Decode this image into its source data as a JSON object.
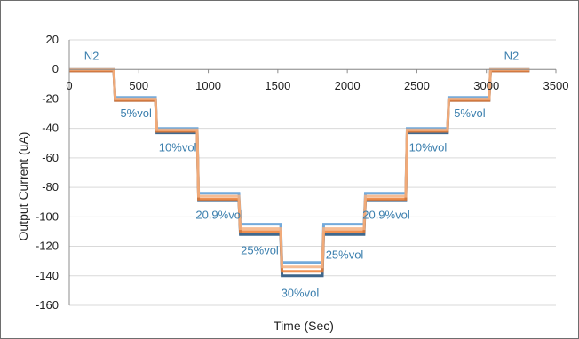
{
  "chart_data": {
    "type": "line",
    "title": "",
    "xlabel": "Time (Sec)",
    "ylabel": "Output Current (uA)",
    "xlim": [
      0,
      3500
    ],
    "ylim": [
      -160,
      20
    ],
    "x_ticks": [
      0,
      500,
      1000,
      1500,
      2000,
      2500,
      3000,
      3500
    ],
    "y_ticks": [
      20,
      0,
      -20,
      -40,
      -60,
      -80,
      -100,
      -120,
      -140,
      -160
    ],
    "grid": "horizontal",
    "legend": "none",
    "colors": [
      "#1f4e79",
      "#5b9bd5",
      "#ed7d31",
      "#f4b183"
    ],
    "series": [
      {
        "x": [
          0,
          320,
          330,
          620,
          630,
          920,
          930,
          1220,
          1230,
          1520,
          1530,
          1820,
          1830,
          2120,
          2130,
          2420,
          2430,
          2720,
          2730,
          3020,
          3030,
          3310
        ],
        "y": [
          -1,
          -1,
          -21,
          -21,
          -43,
          -43,
          -89,
          -89,
          -112,
          -112,
          -140,
          -140,
          -112,
          -112,
          -89,
          -89,
          -43,
          -43,
          -21,
          -21,
          -1,
          -1
        ]
      },
      {
        "x": [
          0,
          320,
          330,
          620,
          630,
          920,
          930,
          1220,
          1230,
          1520,
          1530,
          1820,
          1830,
          2120,
          2130,
          2420,
          2430,
          2720,
          2730,
          3020,
          3030,
          3310
        ],
        "y": [
          0,
          0,
          -19,
          -19,
          -40,
          -40,
          -84,
          -84,
          -105,
          -105,
          -131,
          -131,
          -105,
          -105,
          -84,
          -84,
          -40,
          -40,
          -19,
          -19,
          0,
          0
        ]
      },
      {
        "x": [
          0,
          320,
          330,
          620,
          630,
          920,
          930,
          1220,
          1230,
          1520,
          1530,
          1820,
          1830,
          2120,
          2130,
          2420,
          2430,
          2720,
          2730,
          3020,
          3030,
          3310
        ],
        "y": [
          -1,
          -1,
          -21,
          -21,
          -42,
          -42,
          -88,
          -88,
          -110,
          -110,
          -137,
          -137,
          -110,
          -110,
          -88,
          -88,
          -42,
          -42,
          -21,
          -21,
          -1,
          -1
        ]
      },
      {
        "x": [
          0,
          320,
          330,
          620,
          630,
          920,
          930,
          1220,
          1230,
          1520,
          1530,
          1820,
          1830,
          2120,
          2130,
          2420,
          2430,
          2720,
          2730,
          3020,
          3030,
          3310
        ],
        "y": [
          0,
          0,
          -20,
          -20,
          -41,
          -41,
          -86,
          -86,
          -108,
          -108,
          -134,
          -134,
          -108,
          -108,
          -86,
          -86,
          -41,
          -41,
          -20,
          -20,
          0,
          0
        ]
      }
    ],
    "annotations": [
      {
        "text": "N2",
        "x": 160,
        "y": 9
      },
      {
        "text": "5%vol",
        "x": 480,
        "y": -30
      },
      {
        "text": "10%vol",
        "x": 780,
        "y": -53
      },
      {
        "text": "20.9%vol",
        "x": 1080,
        "y": -99
      },
      {
        "text": "25%vol",
        "x": 1370,
        "y": -123
      },
      {
        "text": "30%vol",
        "x": 1660,
        "y": -152
      },
      {
        "text": "25%vol",
        "x": 1980,
        "y": -126
      },
      {
        "text": "20.9%vol",
        "x": 2280,
        "y": -99
      },
      {
        "text": "10%vol",
        "x": 2580,
        "y": -53
      },
      {
        "text": "5%vol",
        "x": 2880,
        "y": -30
      },
      {
        "text": "N2",
        "x": 3180,
        "y": 9
      }
    ]
  }
}
